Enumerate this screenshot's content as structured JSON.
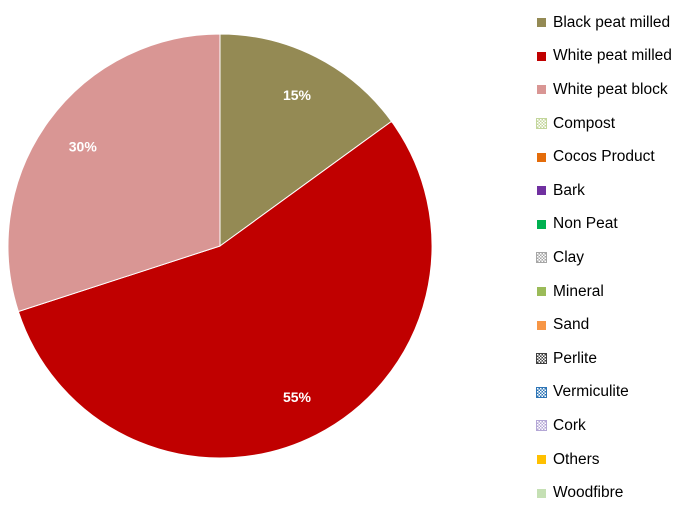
{
  "chart_data": {
    "type": "pie",
    "title": "",
    "slices": [
      {
        "name": "Black peat milled",
        "value": 15,
        "label": "15%",
        "color": "#948A54"
      },
      {
        "name": "White peat milled",
        "value": 55,
        "label": "55%",
        "color": "#C00000"
      },
      {
        "name": "White peat block",
        "value": 30,
        "label": "30%",
        "color": "#D99694"
      }
    ],
    "legend_placement": "right",
    "legend": [
      {
        "label": "Black peat milled",
        "color": "#948A54",
        "pattern": "solid"
      },
      {
        "label": "White peat milled",
        "color": "#C00000",
        "pattern": "solid"
      },
      {
        "label": "White peat block",
        "color": "#D99694",
        "pattern": "solid"
      },
      {
        "label": "Compost",
        "color": "#C3D69B",
        "pattern": "checker"
      },
      {
        "label": "Cocos Product",
        "color": "#E46C0A",
        "pattern": "solid"
      },
      {
        "label": "Bark",
        "color": "#7030A0",
        "pattern": "solid"
      },
      {
        "label": "Non Peat",
        "color": "#00B050",
        "pattern": "solid"
      },
      {
        "label": "Clay",
        "color": "#A6A6A6",
        "pattern": "checker"
      },
      {
        "label": "Mineral",
        "color": "#9BBB59",
        "pattern": "solid"
      },
      {
        "label": "Sand",
        "color": "#F79646",
        "pattern": "solid"
      },
      {
        "label": "Perlite",
        "color": "#404040",
        "pattern": "checker"
      },
      {
        "label": "Vermiculite",
        "color": "#2E75B6",
        "pattern": "checker"
      },
      {
        "label": "Cork",
        "color": "#B4A7D6",
        "pattern": "checker"
      },
      {
        "label": "Others",
        "color": "#FFC000",
        "pattern": "solid"
      },
      {
        "label": "Woodfibre",
        "color": "#C5E0B4",
        "pattern": "solid"
      }
    ]
  }
}
